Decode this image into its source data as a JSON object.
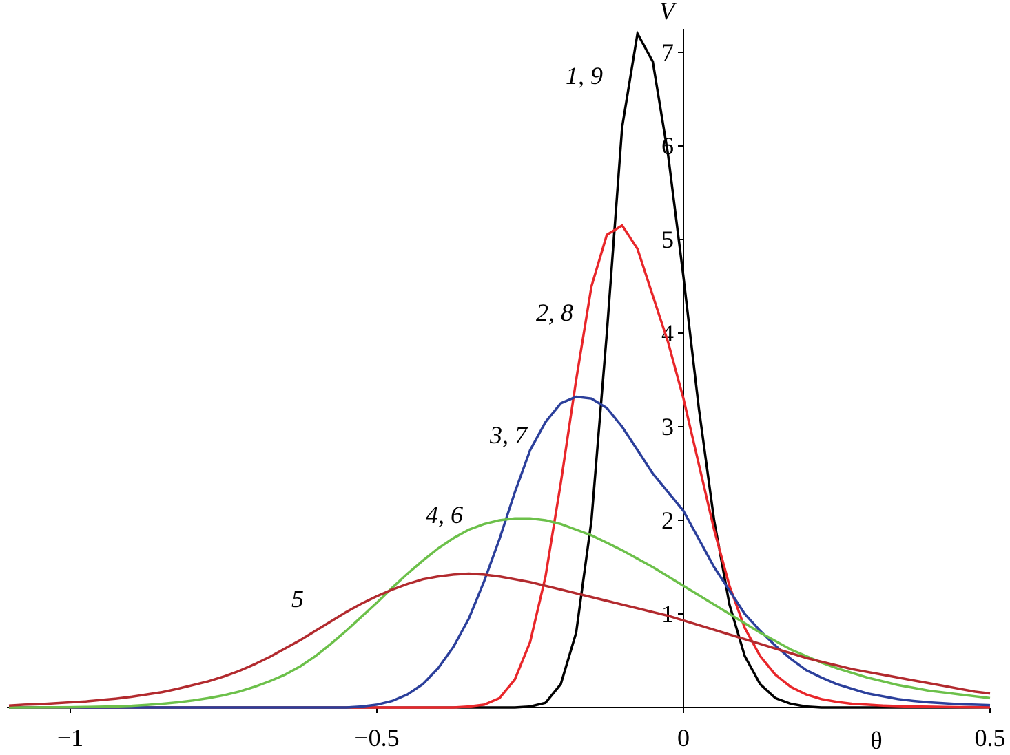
{
  "chart_data": {
    "type": "line",
    "x_label": "θ",
    "y_label": "V",
    "x": [
      -1.1,
      -1.075,
      -1.05,
      -1.025,
      -1,
      -0.975,
      -0.95,
      -0.925,
      -0.9,
      -0.875,
      -0.85,
      -0.825,
      -0.8,
      -0.775,
      -0.75,
      -0.725,
      -0.7,
      -0.675,
      -0.65,
      -0.625,
      -0.6,
      -0.575,
      -0.55,
      -0.525,
      -0.5,
      -0.475,
      -0.45,
      -0.425,
      -0.4,
      -0.375,
      -0.35,
      -0.325,
      -0.3,
      -0.275,
      -0.25,
      -0.225,
      -0.2,
      -0.175,
      -0.15,
      -0.125,
      -0.1,
      -0.075,
      -0.05,
      -0.025,
      0,
      0.025,
      0.05,
      0.075,
      0.1,
      0.125,
      0.15,
      0.175,
      0.2,
      0.225,
      0.25,
      0.275,
      0.3,
      0.325,
      0.35,
      0.375,
      0.4,
      0.425,
      0.45,
      0.475,
      0.5
    ],
    "series": [
      {
        "name": "1, 9",
        "color": "#000000",
        "values": [
          0,
          0,
          0,
          0,
          0,
          0,
          0,
          0,
          0,
          0,
          0,
          0,
          0,
          0,
          0,
          0,
          0,
          0,
          0,
          0,
          0,
          0,
          0,
          0,
          0,
          0,
          0,
          0,
          0,
          0,
          0,
          0,
          0,
          0,
          0.01,
          0.05,
          0.25,
          0.8,
          2.0,
          4.0,
          6.2,
          7.2,
          6.9,
          5.9,
          4.6,
          3.2,
          2.0,
          1.1,
          0.55,
          0.25,
          0.1,
          0.04,
          0.01,
          0,
          0,
          0,
          0,
          0,
          0,
          0,
          0,
          0,
          0,
          0,
          0
        ]
      },
      {
        "name": "2, 8",
        "color": "#e8262a",
        "values": [
          0,
          0,
          0,
          0,
          0,
          0,
          0,
          0,
          0,
          0,
          0,
          0,
          0,
          0,
          0,
          0,
          0,
          0,
          0,
          0,
          0,
          0,
          0,
          0,
          0,
          0,
          0,
          0,
          0,
          0,
          0.01,
          0.03,
          0.1,
          0.3,
          0.7,
          1.4,
          2.4,
          3.5,
          4.5,
          5.05,
          5.15,
          4.9,
          4.4,
          3.9,
          3.3,
          2.6,
          1.9,
          1.3,
          0.85,
          0.55,
          0.35,
          0.22,
          0.14,
          0.09,
          0.06,
          0.04,
          0.03,
          0.02,
          0.015,
          0.01,
          0.008,
          0.006,
          0.004,
          0.003,
          0.002
        ]
      },
      {
        "name": "3, 7",
        "color": "#2b3f9b",
        "values": [
          0,
          0,
          0,
          0,
          0,
          0,
          0,
          0,
          0,
          0,
          0,
          0,
          0,
          0,
          0,
          0,
          0,
          0,
          0,
          0,
          0,
          0,
          0,
          0.01,
          0.03,
          0.07,
          0.14,
          0.25,
          0.42,
          0.65,
          0.95,
          1.35,
          1.8,
          2.3,
          2.75,
          3.05,
          3.25,
          3.32,
          3.3,
          3.2,
          3.0,
          2.75,
          2.5,
          2.3,
          2.1,
          1.8,
          1.5,
          1.25,
          1.0,
          0.82,
          0.66,
          0.52,
          0.4,
          0.32,
          0.25,
          0.2,
          0.15,
          0.12,
          0.09,
          0.07,
          0.055,
          0.045,
          0.035,
          0.03,
          0.025
        ]
      },
      {
        "name": "4, 6",
        "color": "#6cc04a",
        "values": [
          0,
          0,
          0.001,
          0.002,
          0.003,
          0.005,
          0.008,
          0.012,
          0.018,
          0.027,
          0.04,
          0.055,
          0.075,
          0.1,
          0.13,
          0.17,
          0.22,
          0.28,
          0.35,
          0.44,
          0.55,
          0.68,
          0.82,
          0.97,
          1.12,
          1.28,
          1.43,
          1.57,
          1.7,
          1.81,
          1.9,
          1.96,
          2.0,
          2.02,
          2.02,
          2.0,
          1.96,
          1.9,
          1.84,
          1.76,
          1.68,
          1.59,
          1.5,
          1.4,
          1.3,
          1.2,
          1.1,
          1.0,
          0.9,
          0.8,
          0.71,
          0.62,
          0.55,
          0.48,
          0.42,
          0.37,
          0.32,
          0.28,
          0.24,
          0.21,
          0.18,
          0.16,
          0.14,
          0.12,
          0.1
        ]
      },
      {
        "name": "5",
        "color": "#b22a2e",
        "values": [
          0.02,
          0.03,
          0.035,
          0.045,
          0.055,
          0.065,
          0.08,
          0.095,
          0.115,
          0.14,
          0.165,
          0.2,
          0.24,
          0.28,
          0.33,
          0.39,
          0.46,
          0.54,
          0.63,
          0.72,
          0.82,
          0.92,
          1.02,
          1.11,
          1.19,
          1.26,
          1.32,
          1.37,
          1.4,
          1.42,
          1.43,
          1.42,
          1.4,
          1.37,
          1.34,
          1.3,
          1.26,
          1.22,
          1.18,
          1.14,
          1.1,
          1.06,
          1.02,
          0.98,
          0.93,
          0.88,
          0.83,
          0.78,
          0.73,
          0.68,
          0.63,
          0.58,
          0.53,
          0.49,
          0.45,
          0.41,
          0.38,
          0.35,
          0.32,
          0.29,
          0.26,
          0.23,
          0.2,
          0.17,
          0.15
        ]
      }
    ],
    "xlim": [
      -1.1,
      0.5
    ],
    "ylim": [
      0,
      7.25
    ],
    "xticks": [
      {
        "value": -1,
        "label": "−1"
      },
      {
        "value": -0.5,
        "label": "−0.5"
      },
      0,
      0.5
    ],
    "yticks": [
      1,
      2,
      3,
      4,
      5,
      6,
      7
    ]
  }
}
